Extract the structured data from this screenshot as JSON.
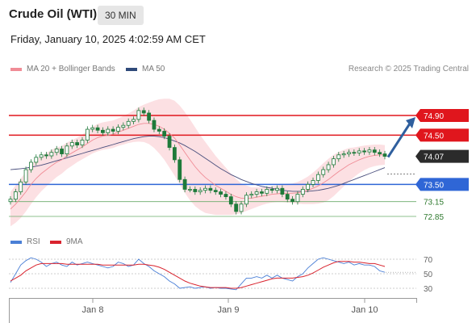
{
  "header": {
    "title": "Crude Oil (WTI)",
    "timeframe": "30 MIN",
    "datetime": "Friday, January 10, 2025 4:02:59 AM CET"
  },
  "legend": {
    "ma20_bb": "MA 20 + Bollinger Bands",
    "ma50": "MA 50",
    "credit": "Research © 2025 Trading Central",
    "rsi": "RSI",
    "rsi_ma": "9MA"
  },
  "colors": {
    "bb_fill": "#fbd6d9",
    "ma20": "#f08c96",
    "ma50": "#4a4f7d",
    "candle": "#1e7a3a",
    "resistance": "#e0161d",
    "support": "#2f66d6",
    "target": "#6aab6a",
    "arrow": "#2f5f9e",
    "rsi": "#4a7fd6",
    "rsi_ma": "#d9232e"
  },
  "chart_data": [
    {
      "type": "candlestick",
      "x_ticks": [
        "Jan 8",
        "Jan 9",
        "Jan 10"
      ],
      "ylim": [
        72.7,
        75.1
      ],
      "last_price": 74.07,
      "levels": [
        {
          "value": 74.9,
          "label": "74.90",
          "kind": "resistance"
        },
        {
          "value": 74.5,
          "label": "74.50",
          "kind": "resistance"
        },
        {
          "value": 73.5,
          "label": "73.50",
          "kind": "support"
        },
        {
          "value": 73.15,
          "label": "73.15",
          "kind": "target"
        },
        {
          "value": 72.85,
          "label": "72.85",
          "kind": "target"
        }
      ],
      "close": [
        73.2,
        73.35,
        73.55,
        73.8,
        73.95,
        74.05,
        74.1,
        74.08,
        74.15,
        74.22,
        74.12,
        74.28,
        74.35,
        74.3,
        74.4,
        74.62,
        74.65,
        74.6,
        74.55,
        74.62,
        74.58,
        74.66,
        74.7,
        74.78,
        74.82,
        75.0,
        74.95,
        74.8,
        74.62,
        74.58,
        74.48,
        74.25,
        74.0,
        73.6,
        73.4,
        73.4,
        73.35,
        73.38,
        73.42,
        73.38,
        73.35,
        73.3,
        73.25,
        73.1,
        72.95,
        73.1,
        73.28,
        73.3,
        73.35,
        73.32,
        73.4,
        73.38,
        73.42,
        73.3,
        73.2,
        73.15,
        73.3,
        73.4,
        73.5,
        73.58,
        73.7,
        73.8,
        73.9,
        74.02,
        74.1,
        74.12,
        74.15,
        74.14,
        74.18,
        74.16,
        74.2,
        74.15,
        74.12,
        74.07
      ],
      "ma20": [
        73.0,
        73.1,
        73.22,
        73.35,
        73.5,
        73.62,
        73.72,
        73.8,
        73.88,
        73.95,
        74.0,
        74.08,
        74.14,
        74.2,
        74.26,
        74.33,
        74.4,
        74.45,
        74.48,
        74.5,
        74.52,
        74.56,
        74.6,
        74.64,
        74.68,
        74.72,
        74.74,
        74.74,
        74.72,
        74.68,
        74.62,
        74.54,
        74.44,
        74.3,
        74.15,
        74.0,
        73.86,
        73.74,
        73.64,
        73.56,
        73.48,
        73.42,
        73.36,
        73.3,
        73.25,
        73.22,
        73.22,
        73.22,
        73.24,
        73.26,
        73.28,
        73.3,
        73.31,
        73.32,
        73.32,
        73.32,
        73.33,
        73.35,
        73.38,
        73.42,
        73.47,
        73.53,
        73.6,
        73.68,
        73.76,
        73.83,
        73.9,
        73.95,
        74.0,
        74.04,
        74.07,
        74.09,
        74.1,
        74.1
      ],
      "ma50": [
        73.8,
        73.81,
        73.82,
        73.83,
        73.85,
        73.87,
        73.89,
        73.92,
        73.95,
        73.98,
        74.01,
        74.04,
        74.07,
        74.1,
        74.13,
        74.16,
        74.19,
        74.22,
        74.25,
        74.28,
        74.31,
        74.34,
        74.37,
        74.4,
        74.43,
        74.45,
        74.47,
        74.48,
        74.48,
        74.47,
        74.45,
        74.42,
        74.38,
        74.34,
        74.29,
        74.23,
        74.17,
        74.1,
        74.03,
        73.96,
        73.89,
        73.82,
        73.76,
        73.7,
        73.65,
        73.6,
        73.56,
        73.52,
        73.49,
        73.46,
        73.44,
        73.42,
        73.4,
        73.38,
        73.37,
        73.36,
        73.36,
        73.36,
        73.36,
        73.37,
        73.38,
        73.4,
        73.42,
        73.45,
        73.48,
        73.52,
        73.56,
        73.6,
        73.64,
        73.68,
        73.72,
        73.76,
        73.8,
        73.84
      ],
      "bb_width": [
        0.35,
        0.38,
        0.4,
        0.4,
        0.4,
        0.38,
        0.36,
        0.34,
        0.32,
        0.3,
        0.28,
        0.27,
        0.26,
        0.25,
        0.25,
        0.26,
        0.27,
        0.28,
        0.28,
        0.28,
        0.28,
        0.28,
        0.29,
        0.3,
        0.32,
        0.35,
        0.38,
        0.42,
        0.48,
        0.55,
        0.62,
        0.7,
        0.76,
        0.8,
        0.82,
        0.82,
        0.8,
        0.76,
        0.72,
        0.66,
        0.6,
        0.54,
        0.48,
        0.42,
        0.36,
        0.3,
        0.26,
        0.22,
        0.2,
        0.18,
        0.17,
        0.17,
        0.17,
        0.18,
        0.19,
        0.2,
        0.22,
        0.25,
        0.28,
        0.32,
        0.36,
        0.4,
        0.42,
        0.42,
        0.4,
        0.37,
        0.34,
        0.3,
        0.27,
        0.25,
        0.23,
        0.22,
        0.21,
        0.2
      ]
    },
    {
      "type": "line",
      "name": "RSI",
      "y_ticks": [
        "70",
        "50",
        "30"
      ],
      "ylim": [
        20,
        80
      ],
      "rsi": [
        38,
        50,
        62,
        68,
        72,
        70,
        66,
        60,
        64,
        66,
        62,
        60,
        66,
        62,
        64,
        66,
        64,
        62,
        60,
        58,
        60,
        66,
        64,
        60,
        62,
        70,
        64,
        60,
        54,
        50,
        46,
        40,
        36,
        30,
        31,
        32,
        30,
        31,
        32,
        30,
        31,
        30,
        30,
        29,
        28,
        36,
        44,
        44,
        46,
        44,
        48,
        44,
        48,
        44,
        42,
        40,
        46,
        50,
        58,
        64,
        70,
        72,
        70,
        68,
        66,
        64,
        66,
        62,
        64,
        62,
        62,
        60,
        54,
        52
      ],
      "rsi_ma": [
        40,
        44,
        48,
        54,
        58,
        62,
        64,
        64,
        64,
        64,
        64,
        63,
        63,
        63,
        63,
        63,
        63,
        63,
        62,
        62,
        62,
        62,
        62,
        62,
        62,
        63,
        63,
        62,
        61,
        59,
        56,
        52,
        48,
        44,
        40,
        37,
        35,
        33,
        32,
        31,
        31,
        31,
        31,
        30,
        30,
        31,
        33,
        35,
        37,
        39,
        41,
        43,
        44,
        44,
        44,
        44,
        45,
        46,
        48,
        51,
        55,
        59,
        62,
        65,
        67,
        67,
        67,
        66,
        66,
        65,
        64,
        64,
        62,
        60
      ]
    }
  ]
}
